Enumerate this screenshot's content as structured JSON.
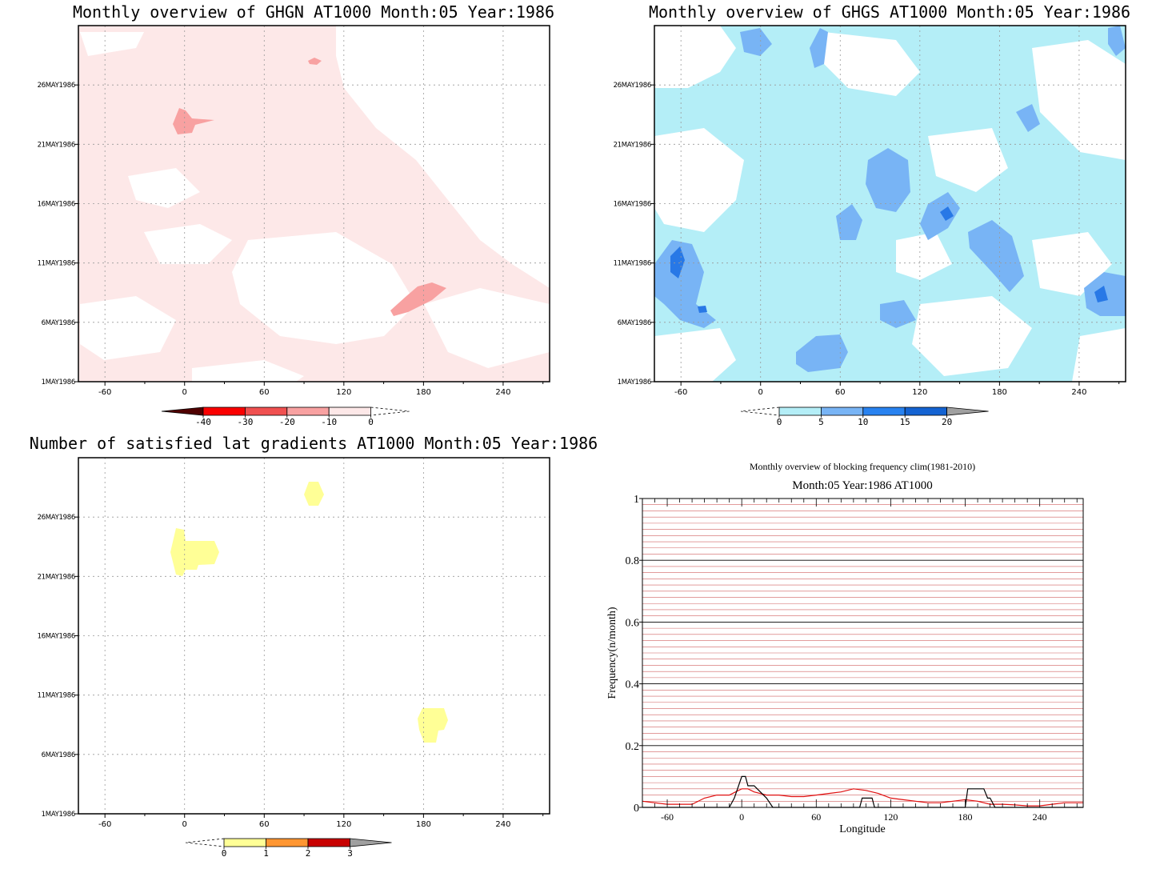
{
  "colors": {
    "ghgn_fill_light": "#fde8e8",
    "ghgn_fill_mid": "#f8a1a1",
    "ghgs_fill_light": "#b4eef7",
    "ghgs_fill_mid": "#78b4f5",
    "ghgs_fill_dark": "#2878e6",
    "grad_fill": "#ffff96",
    "clim_line": "#e01010",
    "obs_line": "#000000",
    "grid_red": "#d06060"
  },
  "ghgn": {
    "title": "Monthly overview of GHGN AT1000 Month:05 Year:1986",
    "x_ticks": [
      "-60",
      "0",
      "60",
      "120",
      "180",
      "240"
    ],
    "y_ticks": [
      "1MAY1986",
      "6MAY1986",
      "11MAY1986",
      "16MAY1986",
      "21MAY1986",
      "26MAY1986"
    ],
    "colorbar": {
      "labels": [
        "-40",
        "-30",
        "-20",
        "-10",
        "0"
      ],
      "colors": [
        "#fa0000",
        "#f05050",
        "#f8a1a1",
        "#fde8e8"
      ]
    }
  },
  "ghgs": {
    "title": "Monthly overview of GHGS AT1000 Month:05 Year:1986",
    "x_ticks": [
      "-60",
      "0",
      "60",
      "120",
      "180",
      "240"
    ],
    "y_ticks": [
      "1MAY1986",
      "6MAY1986",
      "11MAY1986",
      "16MAY1986",
      "21MAY1986",
      "26MAY1986"
    ],
    "colorbar": {
      "labels": [
        "0",
        "5",
        "10",
        "15",
        "20"
      ],
      "colors": [
        "#b4eef7",
        "#78b4f5",
        "#2882f0",
        "#1463d2"
      ]
    }
  },
  "grad": {
    "title": "Number of satisfied lat gradients AT1000 Month:05 Year:1986",
    "x_ticks": [
      "-60",
      "0",
      "60",
      "120",
      "180",
      "240"
    ],
    "y_ticks": [
      "1MAY1986",
      "6MAY1986",
      "11MAY1986",
      "16MAY1986",
      "21MAY1986",
      "26MAY1986"
    ],
    "colorbar": {
      "labels": [
        "0",
        "1",
        "2",
        "3"
      ],
      "colors": [
        "#ffff96",
        "#ff9632",
        "#c80000"
      ]
    }
  },
  "chart_data": {
    "type": "line",
    "title": "Monthly overview of blocking frequency clim(1981-2010)",
    "subtitle": "Month:05 Year:1986  AT1000",
    "xlabel": "Longitude",
    "ylabel": "Frequency(n/month)",
    "xlim": [
      -80,
      275
    ],
    "ylim": [
      0,
      1
    ],
    "x_ticks": [
      "-60",
      "0",
      "60",
      "120",
      "180",
      "240"
    ],
    "y_ticks": [
      "0",
      "0.2",
      "0.4",
      "0.6",
      "0.8",
      "1"
    ],
    "series": [
      {
        "x": [
          -80,
          -60,
          -40,
          -30,
          -20,
          -10,
          -5,
          0,
          5,
          10,
          20,
          30,
          40,
          50,
          60,
          70,
          80,
          90,
          100,
          110,
          120,
          130,
          140,
          150,
          160,
          170,
          180,
          190,
          200,
          210,
          220,
          230,
          240,
          250,
          260,
          275
        ],
        "values": [
          0.02,
          0.01,
          0.01,
          0.03,
          0.04,
          0.04,
          0.05,
          0.06,
          0.06,
          0.05,
          0.04,
          0.04,
          0.035,
          0.035,
          0.04,
          0.045,
          0.05,
          0.06,
          0.055,
          0.045,
          0.03,
          0.025,
          0.02,
          0.015,
          0.015,
          0.02,
          0.025,
          0.02,
          0.01,
          0.01,
          0.008,
          0.005,
          0.005,
          0.01,
          0.015,
          0.015
        ]
      },
      {
        "x": [
          -80,
          -10,
          -6,
          0,
          3,
          5,
          10,
          20,
          25,
          30,
          95,
          97,
          100,
          105,
          107,
          180,
          182,
          185,
          190,
          195,
          198,
          200,
          204,
          275
        ],
        "values": [
          0,
          0,
          0.03,
          0.1,
          0.1,
          0.07,
          0.07,
          0.03,
          0,
          0,
          0,
          0.03,
          0.03,
          0.03,
          0,
          0,
          0.06,
          0.06,
          0.06,
          0.06,
          0.03,
          0.03,
          0,
          0
        ]
      }
    ]
  }
}
